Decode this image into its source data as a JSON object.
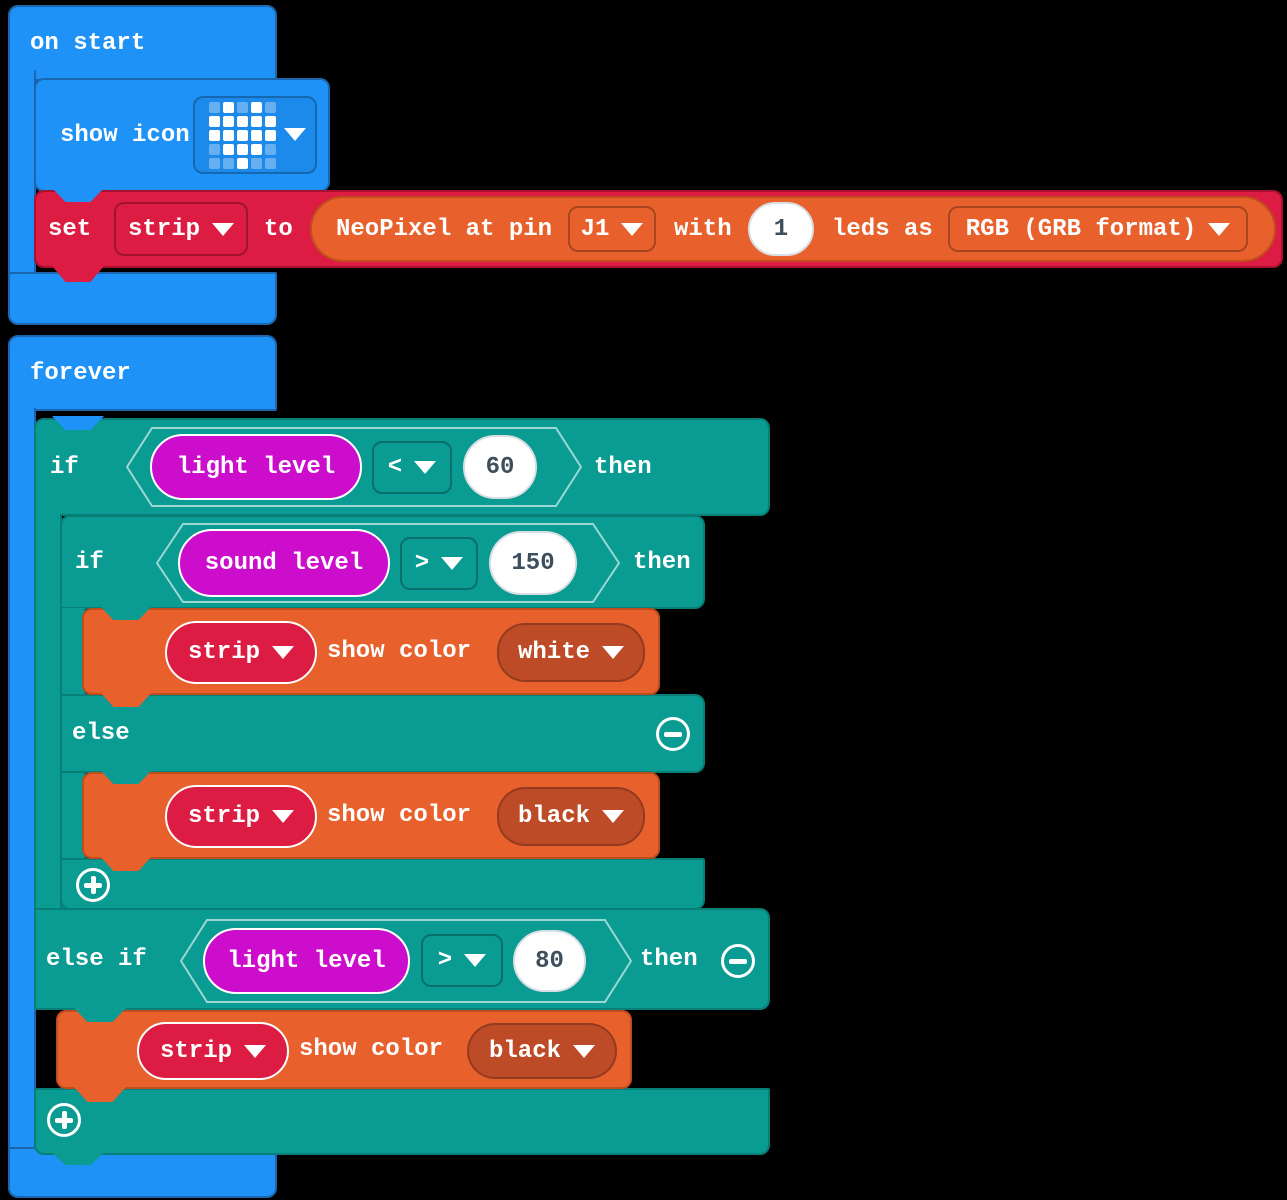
{
  "palette": {
    "block_blue": "#1E92F7",
    "block_teal": "#0A9B92",
    "block_red": "#DC1C42",
    "block_orange": "#E8612D",
    "block_magenta": "#CC0ECC",
    "dropdown_dark_orange": "#BE4B27",
    "value_text": "#3D4E5C"
  },
  "on_start": {
    "title": "on start",
    "show_icon": {
      "label": "show icon",
      "icon": "heart",
      "pattern": [
        "01010",
        "11111",
        "11111",
        "01110",
        "00100"
      ]
    },
    "set_strip": {
      "keyword_set": "set",
      "variable": "strip",
      "keyword_to": "to",
      "neopixel": {
        "label_pin": "NeoPixel at pin",
        "pin": "J1",
        "label_with": "with",
        "led_count": "1",
        "label_leds_as": "leds as",
        "format": "RGB (GRB format)"
      }
    }
  },
  "forever": {
    "title": "forever",
    "if_outer": {
      "keyword_if": "if",
      "condition": "light level",
      "operator": "<",
      "value": "60",
      "keyword_then": "then"
    },
    "if_inner": {
      "keyword_if": "if",
      "condition": "sound level",
      "operator": ">",
      "value": "150",
      "keyword_then": "then"
    },
    "show_white": {
      "variable": "strip",
      "label": "show color",
      "color": "white"
    },
    "keyword_else": "else",
    "show_black_inner": {
      "variable": "strip",
      "label": "show color",
      "color": "black"
    },
    "else_if": {
      "keyword": "else if",
      "condition": "light level",
      "operator": ">",
      "value": "80",
      "keyword_then": "then"
    },
    "show_black_outer": {
      "variable": "strip",
      "label": "show color",
      "color": "black"
    }
  }
}
